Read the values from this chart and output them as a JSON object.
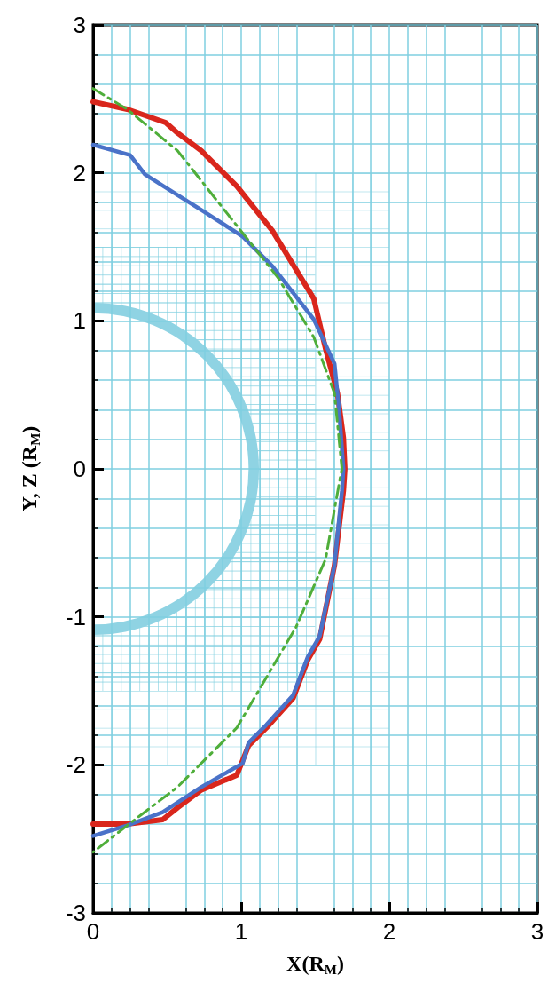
{
  "chart_data": {
    "type": "line",
    "xlabel": "X(R$_{M}$)",
    "ylabel": "Y, Z (R$_{M}$)",
    "xlim": [
      0,
      3
    ],
    "xticks": [
      0,
      1,
      2,
      3
    ],
    "ylim": [
      -3,
      3
    ],
    "yticks": [
      -3,
      -2,
      -1,
      0,
      1,
      2,
      3
    ],
    "grid": true,
    "marker": "none",
    "series": [
      {
        "color": "#d9261c",
        "line_style": "solid",
        "x": [
          0,
          0.23,
          0.49,
          0.57,
          0.73,
          0.97,
          1.21,
          1.49,
          1.57,
          1.65,
          1.69,
          1.7,
          1.69,
          1.63,
          1.53,
          1.45,
          1.35,
          1.17,
          1.05,
          0.97,
          0.73,
          0.57,
          0.47,
          0.23,
          0
        ],
        "values": [
          2.48,
          2.43,
          2.34,
          2.27,
          2.15,
          1.91,
          1.61,
          1.15,
          0.81,
          0.51,
          0.21,
          0,
          -0.15,
          -0.65,
          -1.15,
          -1.29,
          -1.55,
          -1.75,
          -1.87,
          -2.07,
          -2.17,
          -2.29,
          -2.37,
          -2.4,
          -2.4
        ]
      },
      {
        "color": "#4a72c8",
        "line_style": "solid",
        "x": [
          0,
          0.25,
          0.35,
          0.57,
          0.73,
          1.01,
          1.21,
          1.49,
          1.63,
          1.66,
          1.69,
          1.68,
          1.63,
          1.53,
          1.45,
          1.35,
          1.17,
          1.05,
          1.01,
          0.73,
          0.47,
          0.23,
          0
        ],
        "values": [
          2.19,
          2.12,
          1.99,
          1.85,
          1.75,
          1.57,
          1.37,
          1.01,
          0.71,
          0.41,
          0,
          -0.15,
          -0.65,
          -1.13,
          -1.27,
          -1.53,
          -1.73,
          -1.85,
          -1.99,
          -2.15,
          -2.32,
          -2.41,
          -2.48
        ]
      },
      {
        "color": "#4fae3a",
        "line_style": "dashed",
        "x": [
          0,
          0.23,
          0.57,
          0.87,
          1.25,
          1.49,
          1.63,
          1.68,
          1.67,
          1.57,
          1.37,
          0.97,
          0.57,
          0.23,
          0
        ],
        "values": [
          2.57,
          2.43,
          2.15,
          1.77,
          1.29,
          0.89,
          0.51,
          0,
          -0.05,
          -0.61,
          -1.07,
          -1.75,
          -2.15,
          -2.41,
          -2.59
        ]
      }
    ]
  }
}
